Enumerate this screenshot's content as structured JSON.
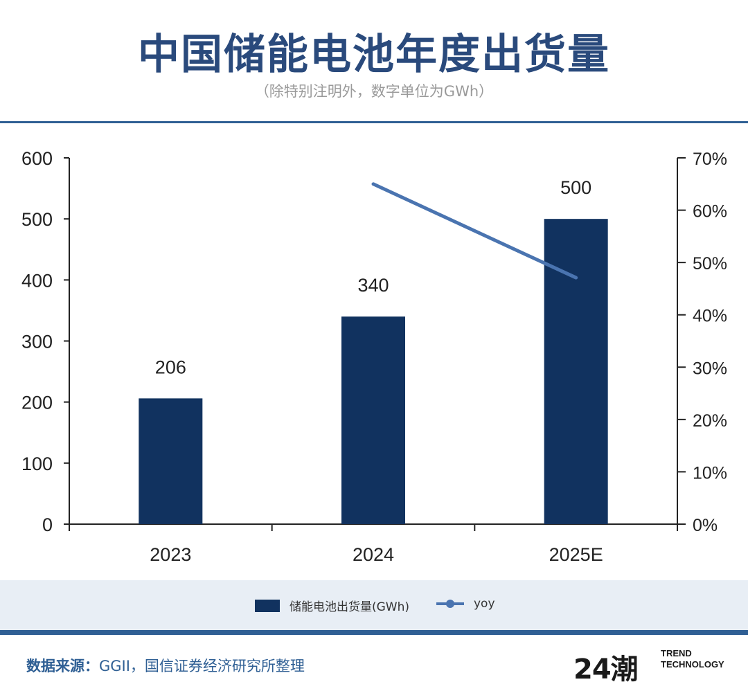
{
  "header": {
    "title": "中国储能电池年度出货量",
    "subtitle": "（除特别注明外，数字单位为GWh）"
  },
  "chart_data": {
    "type": "bar",
    "categories": [
      "2023",
      "2024",
      "2025E"
    ],
    "series": [
      {
        "name": "储能电池出货量(GWh)",
        "type": "bar",
        "axis": "left",
        "values": [
          206,
          340,
          500
        ],
        "color": "#11325f"
      },
      {
        "name": "yoy",
        "type": "line",
        "axis": "right",
        "values": [
          null,
          65.0,
          47.1
        ],
        "color": "#4a74b0"
      }
    ],
    "data_labels": [
      "206",
      "340",
      "500"
    ],
    "ylim_left": [
      0,
      600
    ],
    "yticks_left": [
      "0",
      "100",
      "200",
      "300",
      "400",
      "500",
      "600"
    ],
    "ylim_right": [
      0,
      70
    ],
    "yticks_right": [
      "0%",
      "10%",
      "20%",
      "30%",
      "40%",
      "50%",
      "60%",
      "70%"
    ],
    "grid": false,
    "legend_position": "bottom"
  },
  "legend": {
    "bar_label": "储能电池出货量(GWh)",
    "line_label": "yoy"
  },
  "footer": {
    "source_label": "数据来源：",
    "source_text": "GGII，国信证券经济研究所整理",
    "logo_mark": "24潮",
    "logo_line1": "TREND",
    "logo_line2": "TECHNOLOGY"
  }
}
